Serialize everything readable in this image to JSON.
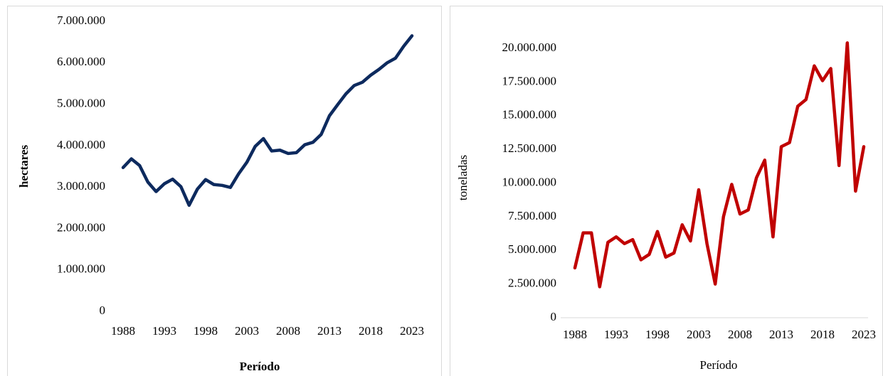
{
  "chart_data": [
    {
      "type": "line",
      "xlabel": "Período",
      "ylabel": "hectares",
      "color": "#0d2a5e",
      "x": [
        1988,
        1989,
        1990,
        1991,
        1992,
        1993,
        1994,
        1995,
        1996,
        1997,
        1998,
        1999,
        2000,
        2001,
        2002,
        2003,
        2004,
        2005,
        2006,
        2007,
        2008,
        2009,
        2010,
        2011,
        2012,
        2013,
        2014,
        2015,
        2016,
        2017,
        2018,
        2019,
        2020,
        2021,
        2022,
        2023
      ],
      "values": [
        3470000,
        3680000,
        3520000,
        3120000,
        2890000,
        3080000,
        3190000,
        3010000,
        2560000,
        2950000,
        3180000,
        3060000,
        3040000,
        2990000,
        3320000,
        3600000,
        3980000,
        4170000,
        3870000,
        3890000,
        3810000,
        3830000,
        4020000,
        4080000,
        4270000,
        4720000,
        4990000,
        5250000,
        5450000,
        5530000,
        5700000,
        5840000,
        6000000,
        6110000,
        6400000,
        6650000
      ],
      "xlim": [
        1988,
        2023
      ],
      "xticks": [
        1988,
        1993,
        1998,
        2003,
        2008,
        2013,
        2018,
        2023
      ],
      "ylim": [
        0,
        7000000
      ],
      "yticks": [
        0,
        {
          "value": 1000000,
          "label": "1.000.000"
        },
        {
          "value": 2000000,
          "label": "2.000.000"
        },
        {
          "value": 3000000,
          "label": "3.000.000"
        },
        {
          "value": 4000000,
          "label": "4.000.000"
        },
        {
          "value": 5000000,
          "label": "5.000.000"
        },
        {
          "value": 6000000,
          "label": "6.000.000"
        },
        {
          "value": 7000000,
          "label": "7.000.000"
        }
      ],
      "grid": false
    },
    {
      "type": "line",
      "xlabel": "Período",
      "ylabel": "toneladas",
      "color": "#c00000",
      "x": [
        1988,
        1989,
        1990,
        1991,
        1992,
        1993,
        1994,
        1995,
        1996,
        1997,
        1998,
        1999,
        2000,
        2001,
        2002,
        2003,
        2004,
        2005,
        2006,
        2007,
        2008,
        2009,
        2010,
        2011,
        2012,
        2013,
        2014,
        2015,
        2016,
        2017,
        2018,
        2019,
        2020,
        2021,
        2022,
        2023
      ],
      "values": [
        3700000,
        6300000,
        6300000,
        2300000,
        5600000,
        6000000,
        5500000,
        5800000,
        4300000,
        4700000,
        6400000,
        4500000,
        4800000,
        6900000,
        5700000,
        9500000,
        5500000,
        2500000,
        7500000,
        9900000,
        7700000,
        8000000,
        10400000,
        11700000,
        6000000,
        12700000,
        13000000,
        15700000,
        16200000,
        18700000,
        17600000,
        18500000,
        11300000,
        20400000,
        9400000,
        12700000
      ],
      "xlim": [
        1988,
        2023
      ],
      "xticks": [
        1988,
        1993,
        1998,
        2003,
        2008,
        2013,
        2018,
        2023
      ],
      "ylim": [
        0,
        20000000
      ],
      "yticks": [
        0,
        {
          "value": 2500000,
          "label": "2.500.000"
        },
        {
          "value": 5000000,
          "label": "5.000.000"
        },
        {
          "value": 7500000,
          "label": "7.500.000"
        },
        {
          "value": 10000000,
          "label": "10.000.000"
        },
        {
          "value": 12500000,
          "label": "12.500.000"
        },
        {
          "value": 15000000,
          "label": "15.000.000"
        },
        {
          "value": 17500000,
          "label": "17.500.000"
        },
        {
          "value": 20000000,
          "label": "20.000.000"
        }
      ],
      "grid": false
    }
  ]
}
